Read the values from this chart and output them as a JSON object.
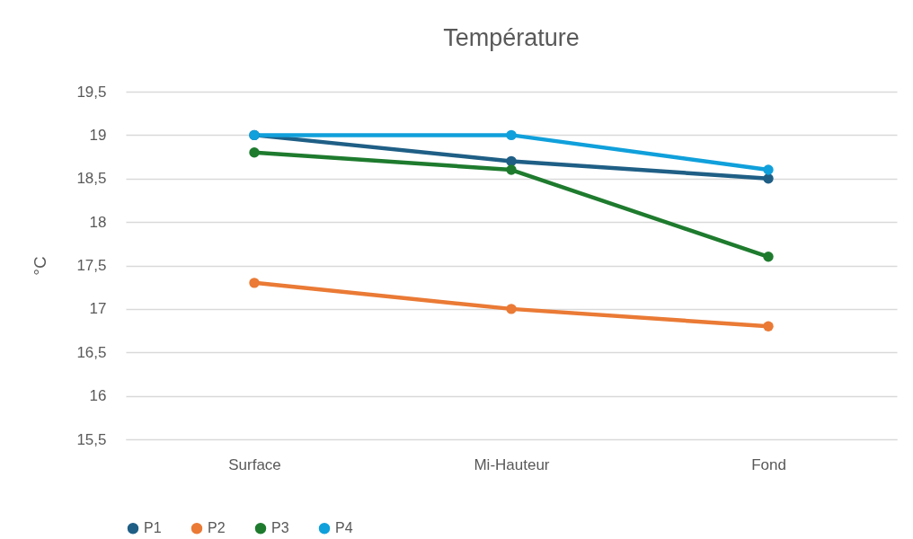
{
  "chart_data": {
    "type": "line",
    "title": "Température",
    "ylabel": "°C",
    "categories": [
      "Surface",
      "Mi-Hauteur",
      "Fond"
    ],
    "series": [
      {
        "name": "P1",
        "color": "#1f5f86",
        "values": [
          19,
          18.7,
          18.5
        ]
      },
      {
        "name": "P2",
        "color": "#ea7a35",
        "values": [
          17.3,
          17.0,
          16.8
        ]
      },
      {
        "name": "P3",
        "color": "#1e7b2e",
        "values": [
          18.8,
          18.6,
          17.6
        ]
      },
      {
        "name": "P4",
        "color": "#10a0db",
        "values": [
          19,
          19,
          18.6
        ]
      }
    ],
    "ylim": [
      15.5,
      19.5
    ],
    "yticks": [
      {
        "value": 15.5,
        "label": "15,5"
      },
      16,
      {
        "value": 16.5,
        "label": "16,5"
      },
      17,
      {
        "value": 17.5,
        "label": "17,5"
      },
      18,
      {
        "value": 18.5,
        "label": "18,5"
      },
      19,
      {
        "value": 19.5,
        "label": "19,5"
      }
    ],
    "grid": "y",
    "legend": "bottom",
    "marker": "circle"
  }
}
